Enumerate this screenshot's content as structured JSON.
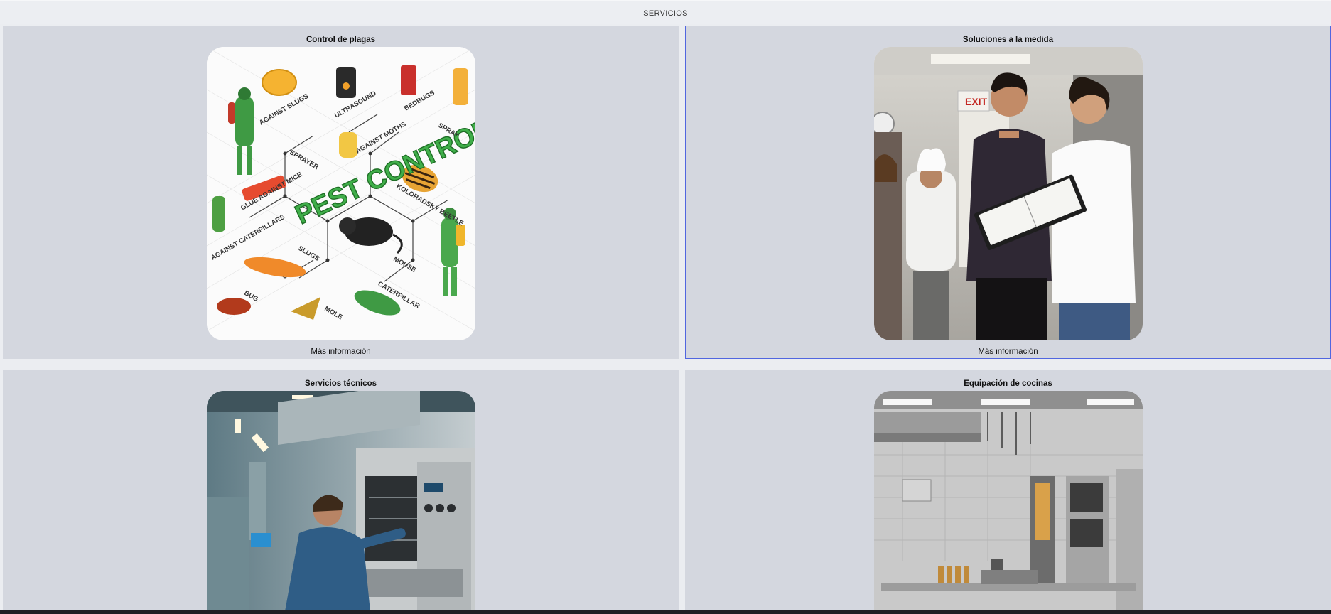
{
  "page": {
    "section_title": "SERVICIOS"
  },
  "cards": [
    {
      "title": "Control de plagas",
      "link": "Más información",
      "image": {
        "headline": "PEST CONTROL",
        "labels": [
          "ULTRASOUND",
          "BEDBUGS",
          "AGAINST SLUGS",
          "SPRAY",
          "SPRAYER",
          "AGAINST MOTHS",
          "GLUE AGAINST MICE",
          "KOLORADSKY BEETLE",
          "AGAINST CATERPILLARS",
          "SLUGS",
          "MOUSE",
          "CATERPILLAR",
          "BUG",
          "MOLE"
        ]
      }
    },
    {
      "title": "Soluciones a la medida",
      "link": "Más información",
      "image": {
        "sign": "EXIT"
      }
    },
    {
      "title": "Servicios técnicos"
    },
    {
      "title": "Equipación de cocinas"
    }
  ]
}
